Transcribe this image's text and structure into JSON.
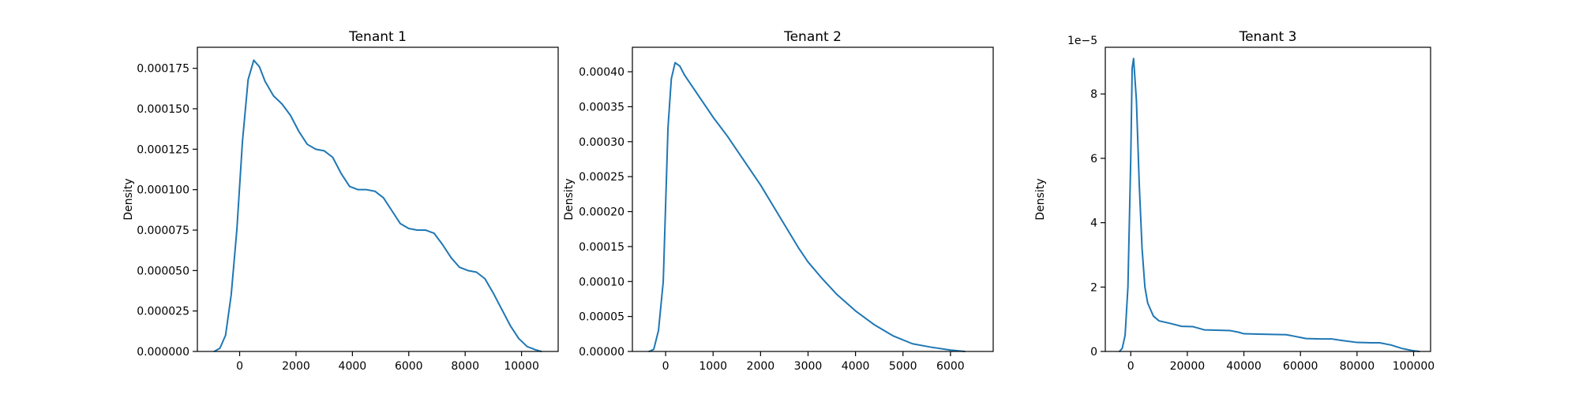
{
  "chart_data": [
    {
      "type": "line",
      "title": "Tenant 1",
      "xlabel": "",
      "ylabel": "Density",
      "xlim": [
        -1500,
        11300
      ],
      "ylim": [
        0,
        0.000188
      ],
      "xticks": [
        0,
        2000,
        4000,
        6000,
        8000,
        10000
      ],
      "xtick_labels": [
        "0",
        "2000",
        "4000",
        "6000",
        "8000",
        "10000"
      ],
      "yticks": [
        0,
        2.5e-05,
        5e-05,
        7.5e-05,
        0.0001,
        0.000125,
        0.00015,
        0.000175
      ],
      "ytick_labels": [
        "0.000000",
        "0.000025",
        "0.000050",
        "0.000075",
        "0.000100",
        "0.000125",
        "0.000150",
        "0.000175"
      ],
      "y_offset_label": "",
      "grid": false,
      "color": "#1f77b4",
      "series": [
        {
          "x": [
            -900,
            -700,
            -500,
            -300,
            -100,
            100,
            300,
            500,
            700,
            900,
            1200,
            1500,
            1800,
            2100,
            2400,
            2700,
            3000,
            3300,
            3600,
            3900,
            4200,
            4500,
            4800,
            5100,
            5400,
            5700,
            6000,
            6300,
            6600,
            6900,
            7200,
            7500,
            7800,
            8100,
            8400,
            8700,
            9000,
            9300,
            9600,
            9900,
            10200,
            10500,
            10700
          ],
          "y": [
            0.0,
            2e-06,
            1e-05,
            3.5e-05,
            7.5e-05,
            0.00013,
            0.000168,
            0.00018,
            0.000176,
            0.000167,
            0.000158,
            0.000153,
            0.000146,
            0.000136,
            0.000128,
            0.000125,
            0.000124,
            0.00012,
            0.00011,
            0.000102,
            0.0001,
            0.0001,
            9.9e-05,
            9.5e-05,
            8.7e-05,
            7.9e-05,
            7.6e-05,
            7.5e-05,
            7.5e-05,
            7.3e-05,
            6.6e-05,
            5.8e-05,
            5.2e-05,
            5e-05,
            4.9e-05,
            4.5e-05,
            3.6e-05,
            2.6e-05,
            1.6e-05,
            8e-06,
            3e-06,
            1e-06,
            0.0
          ]
        }
      ]
    },
    {
      "type": "line",
      "title": "Tenant 2",
      "xlabel": "",
      "ylabel": "Density",
      "xlim": [
        -700,
        6900
      ],
      "ylim": [
        0,
        0.000435
      ],
      "xticks": [
        0,
        1000,
        2000,
        3000,
        4000,
        5000,
        6000
      ],
      "xtick_labels": [
        "0",
        "1000",
        "2000",
        "3000",
        "4000",
        "5000",
        "6000"
      ],
      "yticks": [
        0,
        5e-05,
        0.0001,
        0.00015,
        0.0002,
        0.00025,
        0.0003,
        0.00035,
        0.0004
      ],
      "ytick_labels": [
        "0.00000",
        "0.00005",
        "0.00010",
        "0.00015",
        "0.00020",
        "0.00025",
        "0.00030",
        "0.00035",
        "0.00040"
      ],
      "y_offset_label": "",
      "grid": false,
      "color": "#1f77b4",
      "series": [
        {
          "x": [
            -350,
            -250,
            -150,
            -50,
            50,
            120,
            200,
            300,
            400,
            600,
            800,
            1000,
            1300,
            1600,
            2000,
            2400,
            2800,
            3000,
            3300,
            3600,
            4000,
            4400,
            4800,
            5200,
            5600,
            6000,
            6300
          ],
          "y": [
            0.0,
            3e-06,
            3e-05,
            0.0001,
            0.00032,
            0.00039,
            0.000413,
            0.000408,
            0.000395,
            0.000375,
            0.000355,
            0.000335,
            0.000308,
            0.000278,
            0.000238,
            0.000193,
            0.000148,
            0.000128,
            0.000104,
            8.2e-05,
            5.8e-05,
            3.8e-05,
            2.2e-05,
            1.1e-05,
            6e-06,
            2e-06,
            0.0
          ]
        }
      ]
    },
    {
      "type": "line",
      "title": "Tenant 3",
      "xlabel": "",
      "ylabel": "Density",
      "xlim": [
        -9000,
        106000
      ],
      "ylim": [
        0,
        9.45e-05
      ],
      "xticks": [
        0,
        20000,
        40000,
        60000,
        80000,
        100000
      ],
      "xtick_labels": [
        "0",
        "20000",
        "40000",
        "60000",
        "80000",
        "100000"
      ],
      "yticks": [
        0,
        2e-05,
        4e-05,
        6e-05,
        8e-05
      ],
      "ytick_labels": [
        "0",
        "2",
        "4",
        "6",
        "8"
      ],
      "y_offset_label": "1e−5",
      "grid": false,
      "color": "#1f77b4",
      "series": [
        {
          "x": [
            -4000,
            -3000,
            -2000,
            -1000,
            0,
            500,
            1000,
            2000,
            3000,
            4000,
            5000,
            6000,
            8000,
            10000,
            14000,
            18000,
            22000,
            24000,
            26000,
            30000,
            35000,
            38000,
            40000,
            45000,
            50000,
            55000,
            58000,
            62000,
            67000,
            71000,
            74000,
            80000,
            85000,
            88000,
            92000,
            96000,
            100000,
            102000
          ],
          "y": [
            0.0,
            1e-06,
            5e-06,
            2e-05,
            6e-05,
            8.8e-05,
            9.1e-05,
            7.8e-05,
            5.2e-05,
            3.2e-05,
            2e-05,
            1.5e-05,
            1.1e-05,
            9.5e-06,
            8.7e-06,
            7.8e-06,
            7.7e-06,
            7.2e-06,
            6.7e-06,
            6.6e-06,
            6.5e-06,
            6e-06,
            5.5e-06,
            5.4e-06,
            5.3e-06,
            5.2e-06,
            4.7e-06,
            4e-06,
            3.9e-06,
            3.9e-06,
            3.5e-06,
            2.8e-06,
            2.7e-06,
            2.7e-06,
            2e-06,
            9e-07,
            2e-07,
            0.0
          ]
        }
      ]
    }
  ]
}
